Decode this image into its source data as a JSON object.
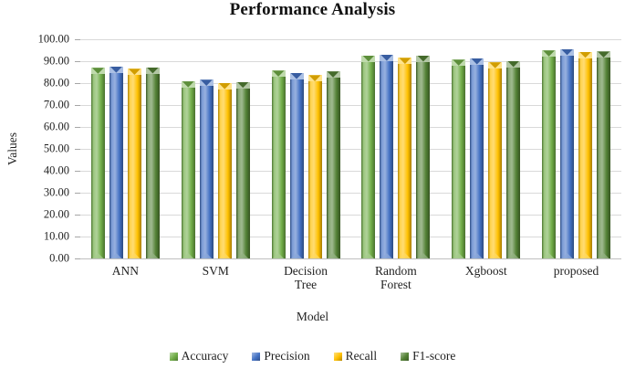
{
  "title": "Performance Analysis",
  "axes": {
    "y_title": "Values",
    "x_title": "Model",
    "y_ticks": [
      "100.00",
      "90.00",
      "80.00",
      "70.00",
      "60.00",
      "50.00",
      "40.00",
      "30.00",
      "20.00",
      "10.00",
      "0.00"
    ]
  },
  "legend": {
    "items": [
      "Accuracy",
      "Precision",
      "Recall",
      "F1-score"
    ]
  },
  "colors": {
    "accuracy": "#70AD47",
    "precision": "#4472C4",
    "recall": "#FFC000",
    "f1_score": "#538135",
    "gridline": "#d9d9d9"
  },
  "chart_data": {
    "type": "bar",
    "title": "Performance Analysis",
    "xlabel": "Model",
    "ylabel": "Values",
    "ylim": [
      0,
      100
    ],
    "y_tick_step": 10,
    "grid": true,
    "legend_position": "bottom",
    "categories": [
      "ANN",
      "SVM",
      "Decision Tree",
      "Random Forest",
      "Xgboost",
      "proposed"
    ],
    "series": [
      {
        "name": "Accuracy",
        "color": "#70AD47",
        "values": [
          87.0,
          80.8,
          85.7,
          92.6,
          90.7,
          94.9
        ]
      },
      {
        "name": "Precision",
        "color": "#4472C4",
        "values": [
          87.5,
          81.5,
          84.6,
          92.9,
          91.3,
          95.5
        ]
      },
      {
        "name": "Recall",
        "color": "#FFC000",
        "values": [
          86.5,
          80.0,
          83.6,
          91.5,
          89.5,
          94.3
        ]
      },
      {
        "name": "F1-score",
        "color": "#538135",
        "values": [
          87.2,
          80.6,
          85.3,
          92.6,
          90.1,
          94.4
        ]
      }
    ]
  }
}
